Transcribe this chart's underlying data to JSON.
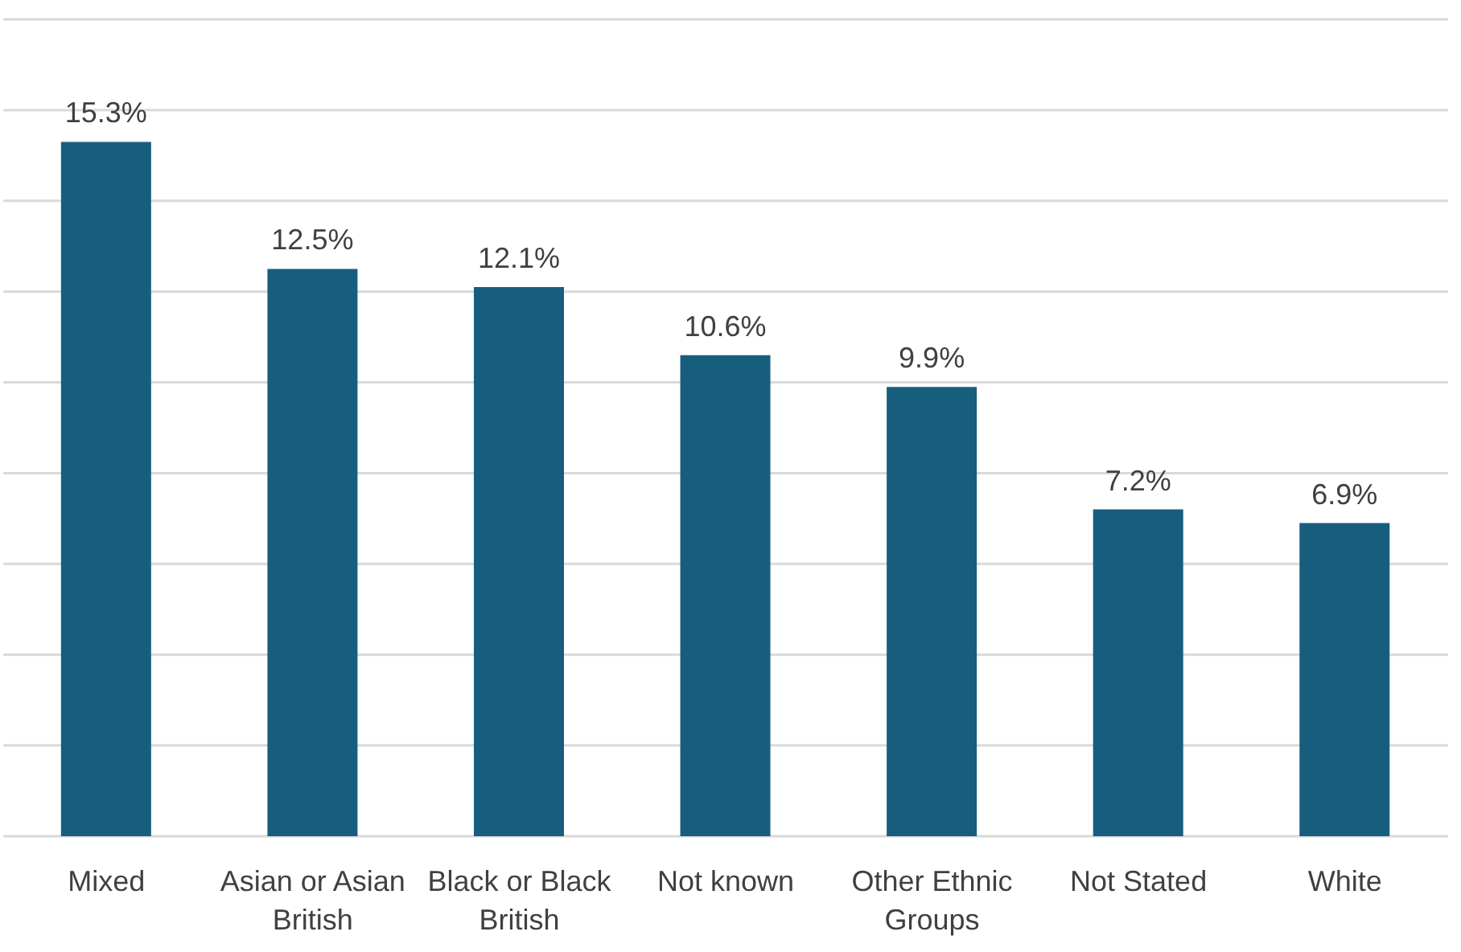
{
  "chart_data": {
    "type": "bar",
    "categories": [
      "Mixed",
      "Asian or Asian British",
      "Black or Black British",
      "Not known",
      "Other Ethnic Groups",
      "Not Stated",
      "White"
    ],
    "values": [
      15.3,
      12.5,
      12.1,
      10.6,
      9.9,
      7.2,
      6.9
    ],
    "value_labels": [
      "15.3%",
      "12.5%",
      "12.1%",
      "10.6%",
      "9.9%",
      "7.2%",
      "6.9%"
    ],
    "color": "#175e7e",
    "ylim": [
      0,
      18
    ],
    "yticks": [
      {
        "value": 0,
        "label": null
      },
      {
        "value": 2,
        "label": null
      },
      {
        "value": 4,
        "label": null
      },
      {
        "value": 6,
        "label": null
      },
      {
        "value": 8,
        "label": null
      },
      {
        "value": 10,
        "label": null
      },
      {
        "value": 12,
        "label": null
      },
      {
        "value": 14,
        "label": null
      },
      {
        "value": 16,
        "label": null
      },
      {
        "value": 18,
        "label": null
      }
    ],
    "grid": "y",
    "tick_labels": "x",
    "legend": false
  }
}
